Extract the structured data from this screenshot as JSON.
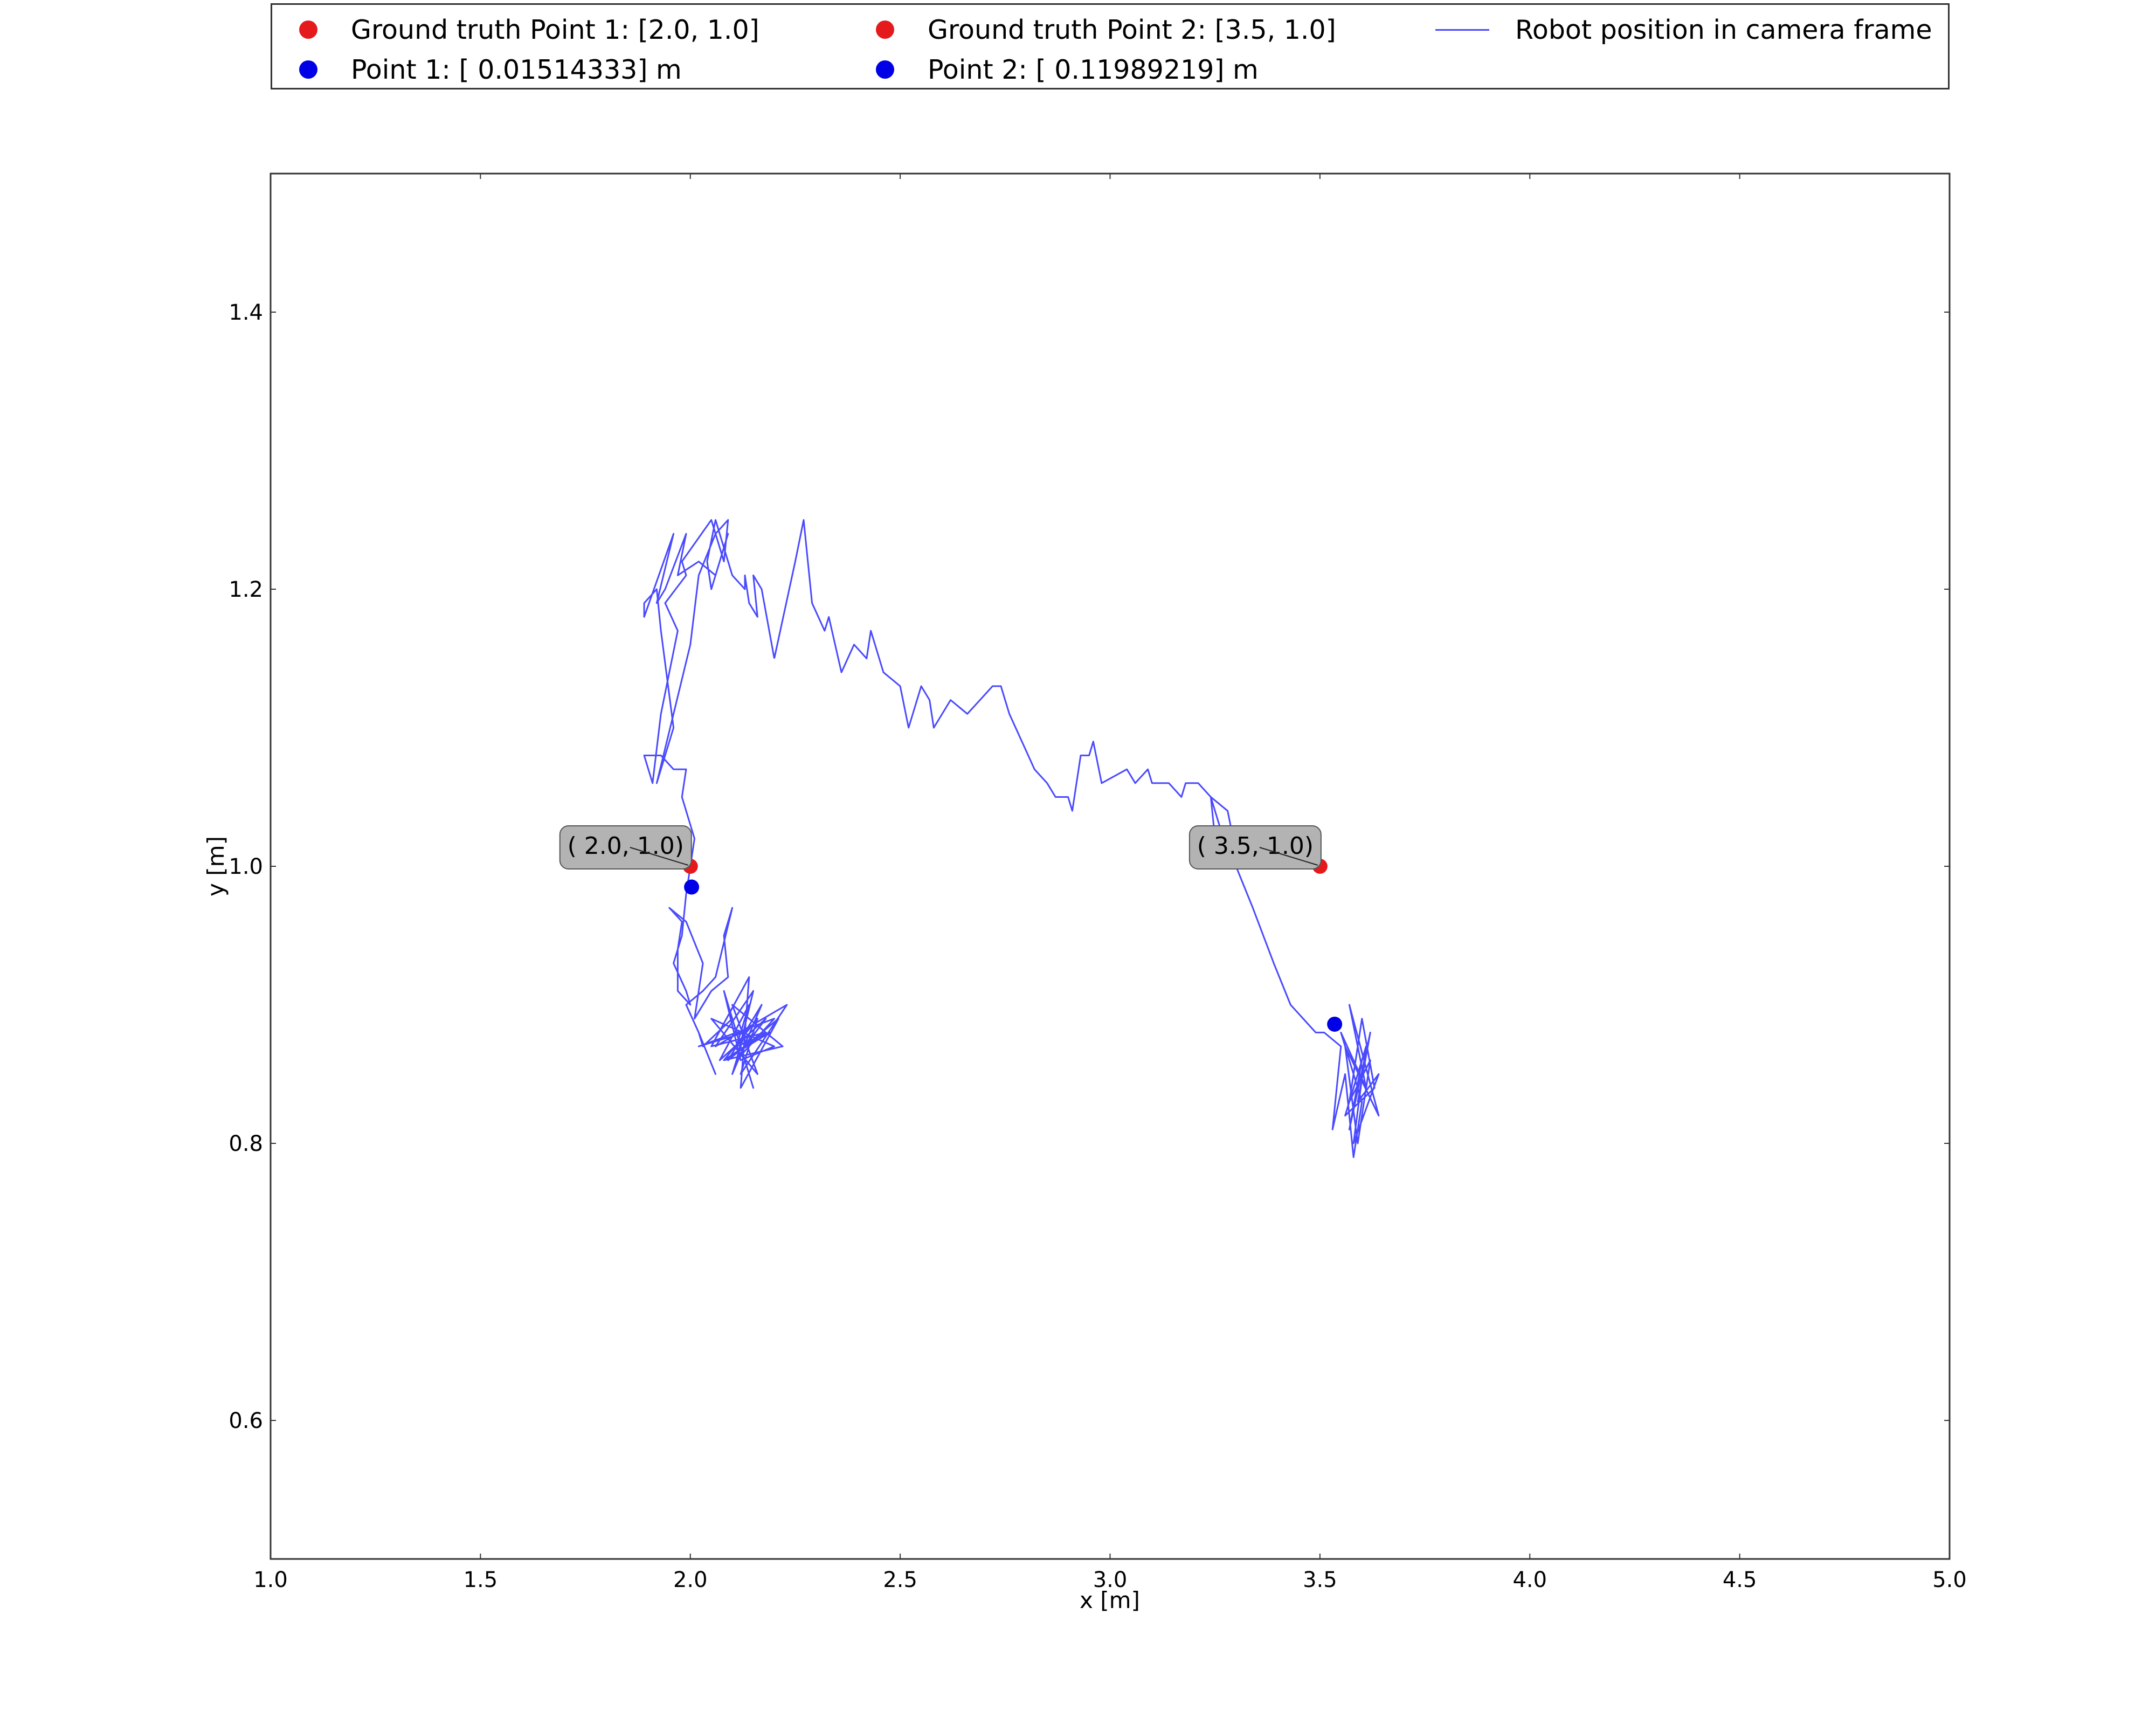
{
  "chart_data": {
    "type": "scatter",
    "title": "",
    "xlabel": "x [m]",
    "ylabel": "y [m]",
    "xlim": [
      1.0,
      5.0
    ],
    "ylim": [
      0.5,
      1.5
    ],
    "xticks": [
      "1.0",
      "1.5",
      "2.0",
      "2.5",
      "3.0",
      "3.5",
      "4.0",
      "4.5",
      "5.0"
    ],
    "xtick_values": [
      1.0,
      1.5,
      2.0,
      2.5,
      3.0,
      3.5,
      4.0,
      4.5,
      5.0
    ],
    "yticks": [
      "0.6",
      "0.8",
      "1.0",
      "1.2",
      "1.4"
    ],
    "ytick_values": [
      0.6,
      0.8,
      1.0,
      1.2,
      1.4
    ],
    "grid": false,
    "legend_position": "top, above plot",
    "legend": [
      {
        "label": "Ground truth Point 1: [2.0, 1.0]",
        "marker": "dot",
        "color": "#e41a1c"
      },
      {
        "label": "Point 1: [ 0.01514333] m",
        "marker": "dot",
        "color": "#0000e6"
      },
      {
        "label": "Ground truth Point 2: [3.5, 1.0]",
        "marker": "dot",
        "color": "#e41a1c"
      },
      {
        "label": "Point 2: [ 0.11989219] m",
        "marker": "dot",
        "color": "#0000e6"
      },
      {
        "label": "Robot position in camera frame",
        "marker": "line",
        "color": "#4a4aff"
      }
    ],
    "ground_truth_points": [
      {
        "name": "Ground truth Point 1",
        "x": 2.0,
        "y": 1.0,
        "color": "#e41a1c"
      },
      {
        "name": "Ground truth Point 2",
        "x": 3.5,
        "y": 1.0,
        "color": "#e41a1c"
      }
    ],
    "estimated_points": [
      {
        "name": "Point 1",
        "x": 2.003,
        "y": 0.985,
        "color": "#0000e6"
      },
      {
        "name": "Point 2",
        "x": 3.535,
        "y": 0.886,
        "color": "#0000e6"
      }
    ],
    "annotations": [
      {
        "text": "( 2.0, 1.0)",
        "x": 2.0,
        "y": 1.0
      },
      {
        "text": "( 3.5, 1.0)",
        "x": 3.5,
        "y": 1.0
      }
    ],
    "series": [
      {
        "name": "Robot position in camera frame",
        "type": "line",
        "color": "#4a4aff",
        "x": [
          2.2,
          2.17,
          2.15,
          2.16,
          2.14,
          2.13,
          2.13,
          2.1,
          2.09,
          2.06,
          2.04,
          2.05,
          2.09,
          2.06,
          2.02,
          1.97,
          1.99,
          1.94,
          1.92,
          1.96,
          1.89,
          1.89,
          1.92,
          1.93,
          1.96,
          1.92,
          2.0,
          2.02,
          2.06,
          2.09,
          2.08,
          2.05,
          1.98,
          1.99,
          1.94,
          1.97,
          1.93,
          1.91,
          1.89,
          1.93,
          1.96,
          1.99,
          1.98,
          2.01,
          2.0,
          1.99,
          1.99,
          1.98,
          1.96,
          1.99,
          2.0,
          1.97,
          1.97,
          1.98,
          1.95,
          1.99,
          2.03,
          2.01,
          2.05,
          2.09,
          2.08,
          2.1,
          2.06,
          2.03,
          1.99,
          2.02,
          2.06,
          2.02,
          2.03,
          2.1,
          2.15,
          2.08,
          2.12,
          2.2,
          2.05,
          2.16,
          2.1,
          2.22,
          2.08,
          2.18,
          2.05,
          2.14,
          2.12,
          2.21,
          2.09,
          2.17,
          2.1,
          2.13,
          2.02,
          2.2,
          2.11,
          2.15,
          2.06,
          2.23,
          2.12,
          2.16,
          2.08,
          2.19,
          2.11,
          2.14,
          2.07,
          2.18,
          2.13,
          2.15,
          2.11,
          2.12
        ],
        "y": [
          1.15,
          1.2,
          1.21,
          1.18,
          1.19,
          1.21,
          1.2,
          1.21,
          1.22,
          1.25,
          1.22,
          1.2,
          1.24,
          1.21,
          1.22,
          1.21,
          1.24,
          1.2,
          1.19,
          1.24,
          1.18,
          1.19,
          1.2,
          1.17,
          1.1,
          1.06,
          1.16,
          1.21,
          1.24,
          1.25,
          1.22,
          1.25,
          1.22,
          1.21,
          1.19,
          1.17,
          1.11,
          1.06,
          1.08,
          1.08,
          1.07,
          1.07,
          1.05,
          1.02,
          1.0,
          0.98,
          0.98,
          0.95,
          0.93,
          0.91,
          0.9,
          0.91,
          0.94,
          0.96,
          0.97,
          0.96,
          0.93,
          0.89,
          0.91,
          0.92,
          0.95,
          0.97,
          0.92,
          0.91,
          0.9,
          0.88,
          0.85,
          0.88,
          0.87,
          0.89,
          0.84,
          0.91,
          0.86,
          0.87,
          0.89,
          0.85,
          0.9,
          0.87,
          0.86,
          0.88,
          0.87,
          0.92,
          0.84,
          0.89,
          0.86,
          0.9,
          0.85,
          0.88,
          0.87,
          0.89,
          0.86,
          0.91,
          0.87,
          0.9,
          0.85,
          0.89,
          0.86,
          0.88,
          0.87,
          0.9,
          0.86,
          0.89,
          0.87,
          0.88,
          0.86,
          0.87
        ]
      },
      {
        "name": "Robot position in camera frame",
        "type": "line",
        "color": "#4a4aff",
        "x": [
          2.2,
          2.25,
          2.27,
          2.29,
          2.32,
          2.33,
          2.36,
          2.39,
          2.42,
          2.43,
          2.46,
          2.5,
          2.52,
          2.55,
          2.57,
          2.58,
          2.62,
          2.66,
          2.69,
          2.72,
          2.74,
          2.76,
          2.79,
          2.82,
          2.85,
          2.87,
          2.9,
          2.91,
          2.93,
          2.95,
          2.96,
          2.98,
          3.04,
          3.06,
          3.09,
          3.1,
          3.14,
          3.17,
          3.18,
          3.21,
          3.24,
          3.28,
          3.3,
          3.25,
          3.24,
          3.27,
          3.3,
          3.34,
          3.39,
          3.43,
          3.49,
          3.51,
          3.55,
          3.53,
          3.56,
          3.58,
          3.6,
          3.55,
          3.61,
          3.57,
          3.64,
          3.56,
          3.59,
          3.62,
          3.57,
          3.6,
          3.63,
          3.56,
          3.61,
          3.58,
          3.64,
          3.59,
          3.62,
          3.57,
          3.6,
          3.58
        ],
        "y": [
          1.15,
          1.22,
          1.25,
          1.19,
          1.17,
          1.18,
          1.14,
          1.16,
          1.15,
          1.17,
          1.14,
          1.13,
          1.1,
          1.13,
          1.12,
          1.1,
          1.12,
          1.11,
          1.12,
          1.13,
          1.13,
          1.11,
          1.09,
          1.07,
          1.06,
          1.05,
          1.05,
          1.04,
          1.08,
          1.08,
          1.09,
          1.06,
          1.07,
          1.06,
          1.07,
          1.06,
          1.06,
          1.05,
          1.06,
          1.06,
          1.05,
          1.04,
          1.01,
          1.02,
          1.05,
          1.02,
          1.0,
          0.97,
          0.93,
          0.9,
          0.88,
          0.88,
          0.87,
          0.81,
          0.85,
          0.79,
          0.83,
          0.88,
          0.84,
          0.9,
          0.82,
          0.87,
          0.8,
          0.86,
          0.83,
          0.89,
          0.84,
          0.82,
          0.87,
          0.8,
          0.85,
          0.83,
          0.88,
          0.81,
          0.86,
          0.84
        ]
      }
    ]
  }
}
